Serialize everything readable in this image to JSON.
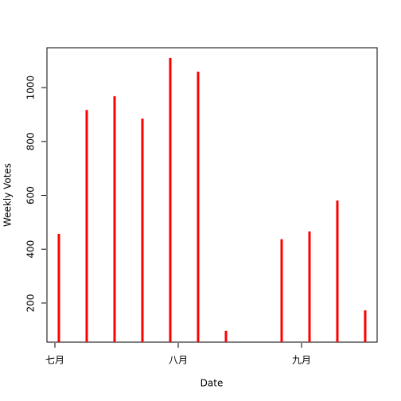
{
  "chart_data": {
    "type": "spike",
    "xlabel": "Date",
    "ylabel": "Weekly Votes",
    "x": [
      1,
      8,
      15,
      22,
      29,
      36,
      43,
      57,
      64,
      71,
      78
    ],
    "values": [
      457,
      917,
      968,
      885,
      1110,
      1059,
      97,
      437,
      466,
      581,
      173
    ],
    "color": "#ff0000",
    "xlim": [
      -2,
      81
    ],
    "xticks": [
      {
        "value": 0,
        "label": "七月"
      },
      {
        "value": 31,
        "label": "八月"
      },
      {
        "value": 62,
        "label": "九月"
      }
    ],
    "ylim": [
      55,
      1148
    ],
    "yticks": [
      200,
      400,
      600,
      800,
      1000
    ]
  }
}
